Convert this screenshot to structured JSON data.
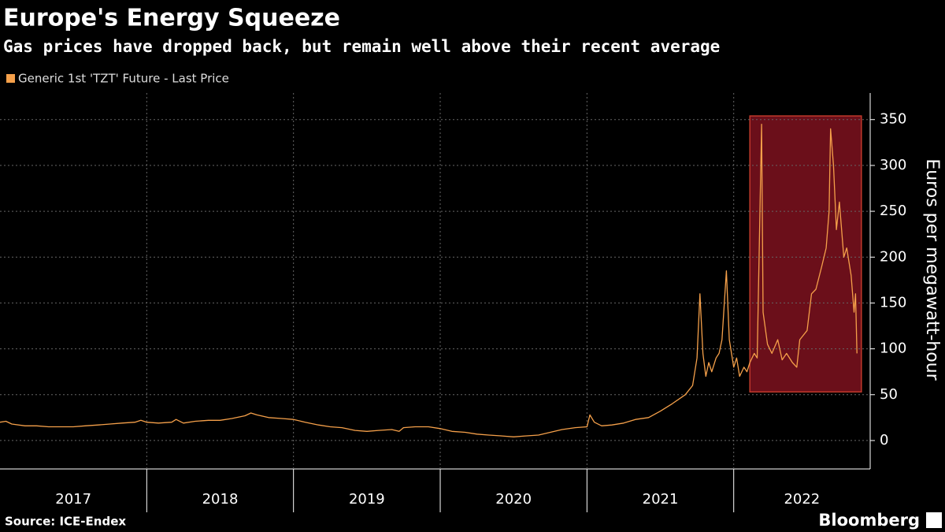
{
  "chart_data": {
    "type": "line",
    "title": "Europe's Energy Squeeze",
    "subtitle": "Gas prices have dropped back, but remain well above their recent average",
    "y_label": "Euros per megawatt-hour",
    "source": "Source: ICE-Endex",
    "logo": "Bloomberg",
    "x": [
      2017.0,
      2017.04,
      2017.08,
      2017.17,
      2017.25,
      2017.33,
      2017.42,
      2017.5,
      2017.58,
      2017.67,
      2017.75,
      2017.83,
      2017.92,
      2017.96,
      2018.0,
      2018.08,
      2018.17,
      2018.2,
      2018.25,
      2018.33,
      2018.42,
      2018.5,
      2018.58,
      2018.67,
      2018.71,
      2018.75,
      2018.83,
      2018.92,
      2019.0,
      2019.08,
      2019.17,
      2019.25,
      2019.33,
      2019.42,
      2019.5,
      2019.58,
      2019.67,
      2019.72,
      2019.75,
      2019.83,
      2019.92,
      2020.0,
      2020.08,
      2020.17,
      2020.25,
      2020.33,
      2020.42,
      2020.5,
      2020.58,
      2020.67,
      2020.75,
      2020.83,
      2020.92,
      2021.0,
      2021.02,
      2021.05,
      2021.1,
      2021.17,
      2021.25,
      2021.33,
      2021.42,
      2021.5,
      2021.58,
      2021.67,
      2021.72,
      2021.75,
      2021.77,
      2021.79,
      2021.81,
      2021.83,
      2021.85,
      2021.88,
      2021.9,
      2021.92,
      2021.95,
      2021.97,
      2022.0,
      2022.02,
      2022.04,
      2022.07,
      2022.09,
      2022.11,
      2022.14,
      2022.16,
      2022.19,
      2022.2,
      2022.23,
      2022.26,
      2022.3,
      2022.33,
      2022.36,
      2022.4,
      2022.43,
      2022.45,
      2022.5,
      2022.53,
      2022.56,
      2022.6,
      2022.63,
      2022.65,
      2022.66,
      2022.68,
      2022.7,
      2022.72,
      2022.75,
      2022.77,
      2022.8,
      2022.82,
      2022.83,
      2022.84
    ],
    "series": [
      {
        "name": "Generic 1st 'TZT' Future - Last Price",
        "color": "#f5a04a",
        "values": [
          20,
          21,
          18,
          16,
          16,
          15,
          15,
          15,
          16,
          17,
          18,
          19,
          20,
          22,
          20,
          19,
          20,
          23,
          19,
          21,
          22,
          22,
          24,
          27,
          30,
          28,
          25,
          24,
          23,
          20,
          17,
          15,
          14,
          11,
          10,
          11,
          12,
          10,
          14,
          15,
          15,
          13,
          10,
          9,
          7,
          6,
          5,
          4,
          5,
          6,
          9,
          12,
          14,
          15,
          28,
          20,
          16,
          17,
          19,
          23,
          25,
          32,
          40,
          50,
          60,
          90,
          160,
          95,
          70,
          85,
          75,
          90,
          95,
          110,
          185,
          110,
          80,
          90,
          70,
          80,
          75,
          85,
          95,
          90,
          345,
          140,
          105,
          95,
          110,
          88,
          95,
          85,
          80,
          110,
          120,
          160,
          165,
          190,
          210,
          250,
          340,
          300,
          230,
          260,
          200,
          210,
          180,
          140,
          160,
          95
        ]
      }
    ],
    "xlim": [
      2017.0,
      2022.93
    ],
    "xticks": [
      {
        "value": 2017,
        "label": "2017"
      },
      {
        "value": 2018,
        "label": "2018"
      },
      {
        "value": 2019,
        "label": "2019"
      },
      {
        "value": 2020,
        "label": "2020"
      },
      {
        "value": 2021,
        "label": "2021"
      },
      {
        "value": 2022,
        "label": "2022"
      }
    ],
    "ylim": [
      -31,
      379
    ],
    "yticks": [
      0,
      50,
      100,
      150,
      200,
      250,
      300,
      350
    ],
    "grid": true,
    "highlight": {
      "x": [
        2022.11,
        2022.87
      ],
      "y": [
        53,
        354
      ],
      "color": "#6b0f1a",
      "edge": "#c0392b"
    }
  }
}
